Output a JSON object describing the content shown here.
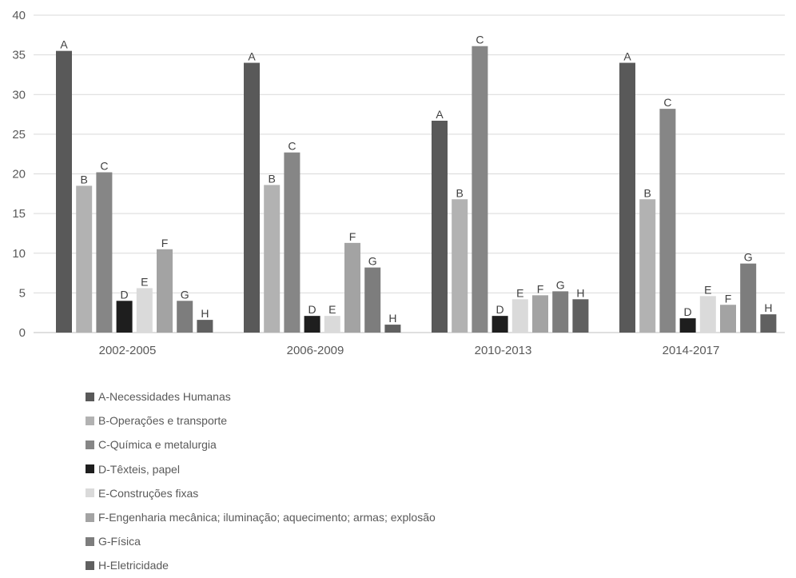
{
  "chart_data": {
    "type": "bar",
    "categories": [
      "2002-2005",
      "2006-2009",
      "2010-2013",
      "2014-2017"
    ],
    "ylim": [
      0,
      40
    ],
    "yticks": [
      0,
      5,
      10,
      15,
      20,
      25,
      30,
      35,
      40
    ],
    "grid": true,
    "legend_position": "bottom",
    "series": [
      {
        "key": "A",
        "name": "A-Necessidades Humanas",
        "color": "#595959",
        "values": [
          35.5,
          34.0,
          26.7,
          34.0
        ]
      },
      {
        "key": "B",
        "name": "B-Operações e transporte",
        "color": "#b2b2b2",
        "values": [
          18.5,
          18.6,
          16.8,
          16.8
        ]
      },
      {
        "key": "C",
        "name": "C-Química e metalurgia",
        "color": "#868686",
        "values": [
          20.2,
          22.7,
          36.1,
          28.2
        ]
      },
      {
        "key": "D",
        "name": "D-Têxteis, papel",
        "color": "#1e1e1e",
        "values": [
          4.0,
          2.1,
          2.1,
          1.8
        ]
      },
      {
        "key": "E",
        "name": "E-Construções fixas",
        "color": "#dadada",
        "values": [
          5.6,
          2.1,
          4.2,
          4.6
        ]
      },
      {
        "key": "F",
        "name": "F-Engenharia mecânica; iluminação; aquecimento; armas; explosão",
        "color": "#a3a3a3",
        "values": [
          10.5,
          11.3,
          4.7,
          3.5
        ]
      },
      {
        "key": "G",
        "name": "G-Física",
        "color": "#7d7d7d",
        "values": [
          4.0,
          8.2,
          5.2,
          8.7
        ]
      },
      {
        "key": "H",
        "name": "H-Eletricidade",
        "color": "#606060",
        "values": [
          1.6,
          1.0,
          4.2,
          2.3
        ]
      }
    ]
  }
}
